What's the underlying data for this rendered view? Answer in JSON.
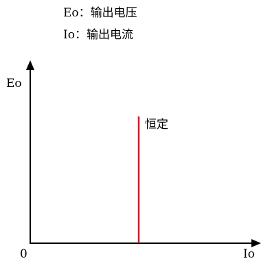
{
  "legend": {
    "eo": "Eo：输出电压",
    "io": "Io：输出电流"
  },
  "axes": {
    "y_label": "Eo",
    "x_label": "Io",
    "origin": "0"
  },
  "curve": {
    "label": "恒定",
    "color": "#e0141e"
  },
  "colors": {
    "axis": "#000000"
  }
}
